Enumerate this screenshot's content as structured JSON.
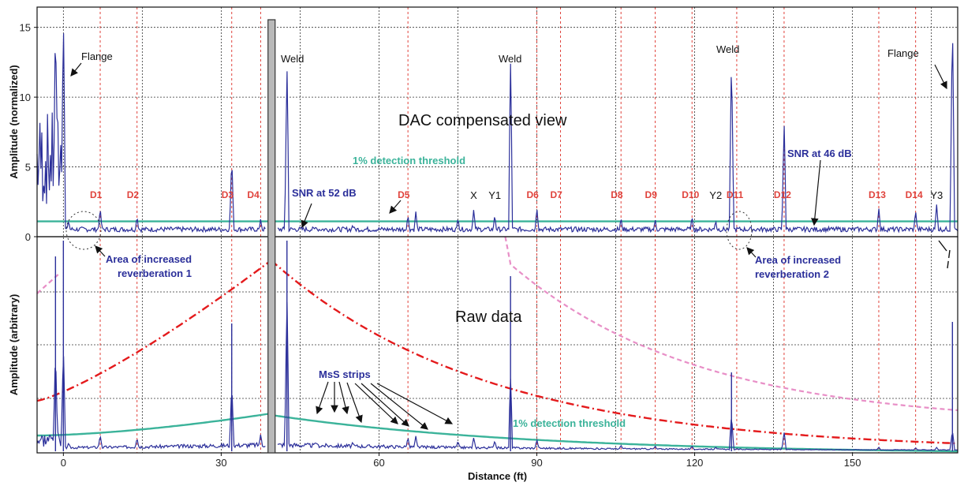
{
  "chart_data": [
    {
      "type": "line",
      "panel": "top",
      "ylabel": "Amplitude (normalized)",
      "view_title": "DAC compensated view",
      "ylim": [
        0,
        16
      ],
      "yticks": [
        0,
        5,
        10,
        15
      ],
      "xlim": [
        -5,
        170
      ],
      "grid": true,
      "threshold": {
        "label": "1% detection threshold",
        "value": 1.1,
        "color": "#3bb39a"
      },
      "annotations": [
        {
          "id": "flange-left",
          "text": "Flange"
        },
        {
          "id": "weld-1",
          "text": "Weld"
        },
        {
          "id": "weld-2",
          "text": "Weld"
        },
        {
          "id": "weld-3",
          "text": "Weld"
        },
        {
          "id": "flange-right",
          "text": "Flange"
        },
        {
          "id": "snr-52",
          "text": "SNR at 52 dB"
        },
        {
          "id": "snr-46",
          "text": "SNR at 46 dB"
        },
        {
          "id": "rev-1-line1",
          "text": "Area of increased"
        },
        {
          "id": "rev-1-line2",
          "text": "reverberation 1"
        },
        {
          "id": "rev-2-line1",
          "text": "Area of increased"
        },
        {
          "id": "rev-2-line2",
          "text": "reverberation 2"
        }
      ],
      "defect_markers": [
        {
          "label": "D1",
          "x": 7
        },
        {
          "label": "D2",
          "x": 14
        },
        {
          "label": "D3",
          "x": 32
        },
        {
          "label": "D4",
          "x": 37.5
        },
        {
          "label": "D5",
          "x": 65.5
        },
        {
          "label": "D6",
          "x": 90
        },
        {
          "label": "D7",
          "x": 94.5
        },
        {
          "label": "D8",
          "x": 106
        },
        {
          "label": "D9",
          "x": 112.5
        },
        {
          "label": "D10",
          "x": 119.5
        },
        {
          "label": "D11",
          "x": 128
        },
        {
          "label": "D12",
          "x": 137
        },
        {
          "label": "D13",
          "x": 155
        },
        {
          "label": "D14",
          "x": 162
        }
      ],
      "other_markers": [
        {
          "label": "X",
          "x": 78
        },
        {
          "label": "Y1",
          "x": 82
        },
        {
          "label": "Y2",
          "x": 124
        },
        {
          "label": "Y3",
          "x": 166
        }
      ],
      "signal_peaks": [
        {
          "x": -1.5,
          "y": 16
        },
        {
          "x": 0,
          "y": 16
        },
        {
          "x": 1,
          "y": 1.2
        },
        {
          "x": 7,
          "y": 2.1
        },
        {
          "x": 14,
          "y": 1.5
        },
        {
          "x": 32,
          "y": 5.8
        },
        {
          "x": 37.5,
          "y": 1.3
        },
        {
          "x": 42.5,
          "y": 12.4
        },
        {
          "x": 48,
          "y": 0.8
        },
        {
          "x": 55,
          "y": 0.9
        },
        {
          "x": 65.5,
          "y": 1.6
        },
        {
          "x": 67,
          "y": 1.8
        },
        {
          "x": 75,
          "y": 1.4
        },
        {
          "x": 78,
          "y": 2.0
        },
        {
          "x": 82,
          "y": 1.6
        },
        {
          "x": 85,
          "y": 12.4
        },
        {
          "x": 90,
          "y": 2.1
        },
        {
          "x": 106,
          "y": 1.4
        },
        {
          "x": 112.5,
          "y": 1.3
        },
        {
          "x": 119.5,
          "y": 1.5
        },
        {
          "x": 124,
          "y": 1.2
        },
        {
          "x": 127,
          "y": 13.2
        },
        {
          "x": 137,
          "y": 8.3
        },
        {
          "x": 155,
          "y": 2.1
        },
        {
          "x": 162,
          "y": 1.9
        },
        {
          "x": 166,
          "y": 2.3
        },
        {
          "x": 169,
          "y": 16
        }
      ]
    },
    {
      "type": "line",
      "panel": "bottom",
      "ylabel": "Amplitude (arbitrary)",
      "view_title": "Raw data",
      "xlabel": "Distance (ft)",
      "xlim": [
        -5,
        170
      ],
      "xticks": [
        0,
        30,
        60,
        90,
        120,
        150
      ],
      "grid": true,
      "threshold": {
        "label": "1% detection threshold",
        "color": "#3bb39a"
      },
      "annotations": [
        {
          "id": "mss-strips",
          "text": "MsS strips"
        }
      ],
      "dac_curves": [
        {
          "style": "dash-dot",
          "color": "#e41a1c"
        },
        {
          "style": "dashed",
          "color": "#e88fc7"
        }
      ],
      "sensor_position_x": 39.5
    }
  ]
}
